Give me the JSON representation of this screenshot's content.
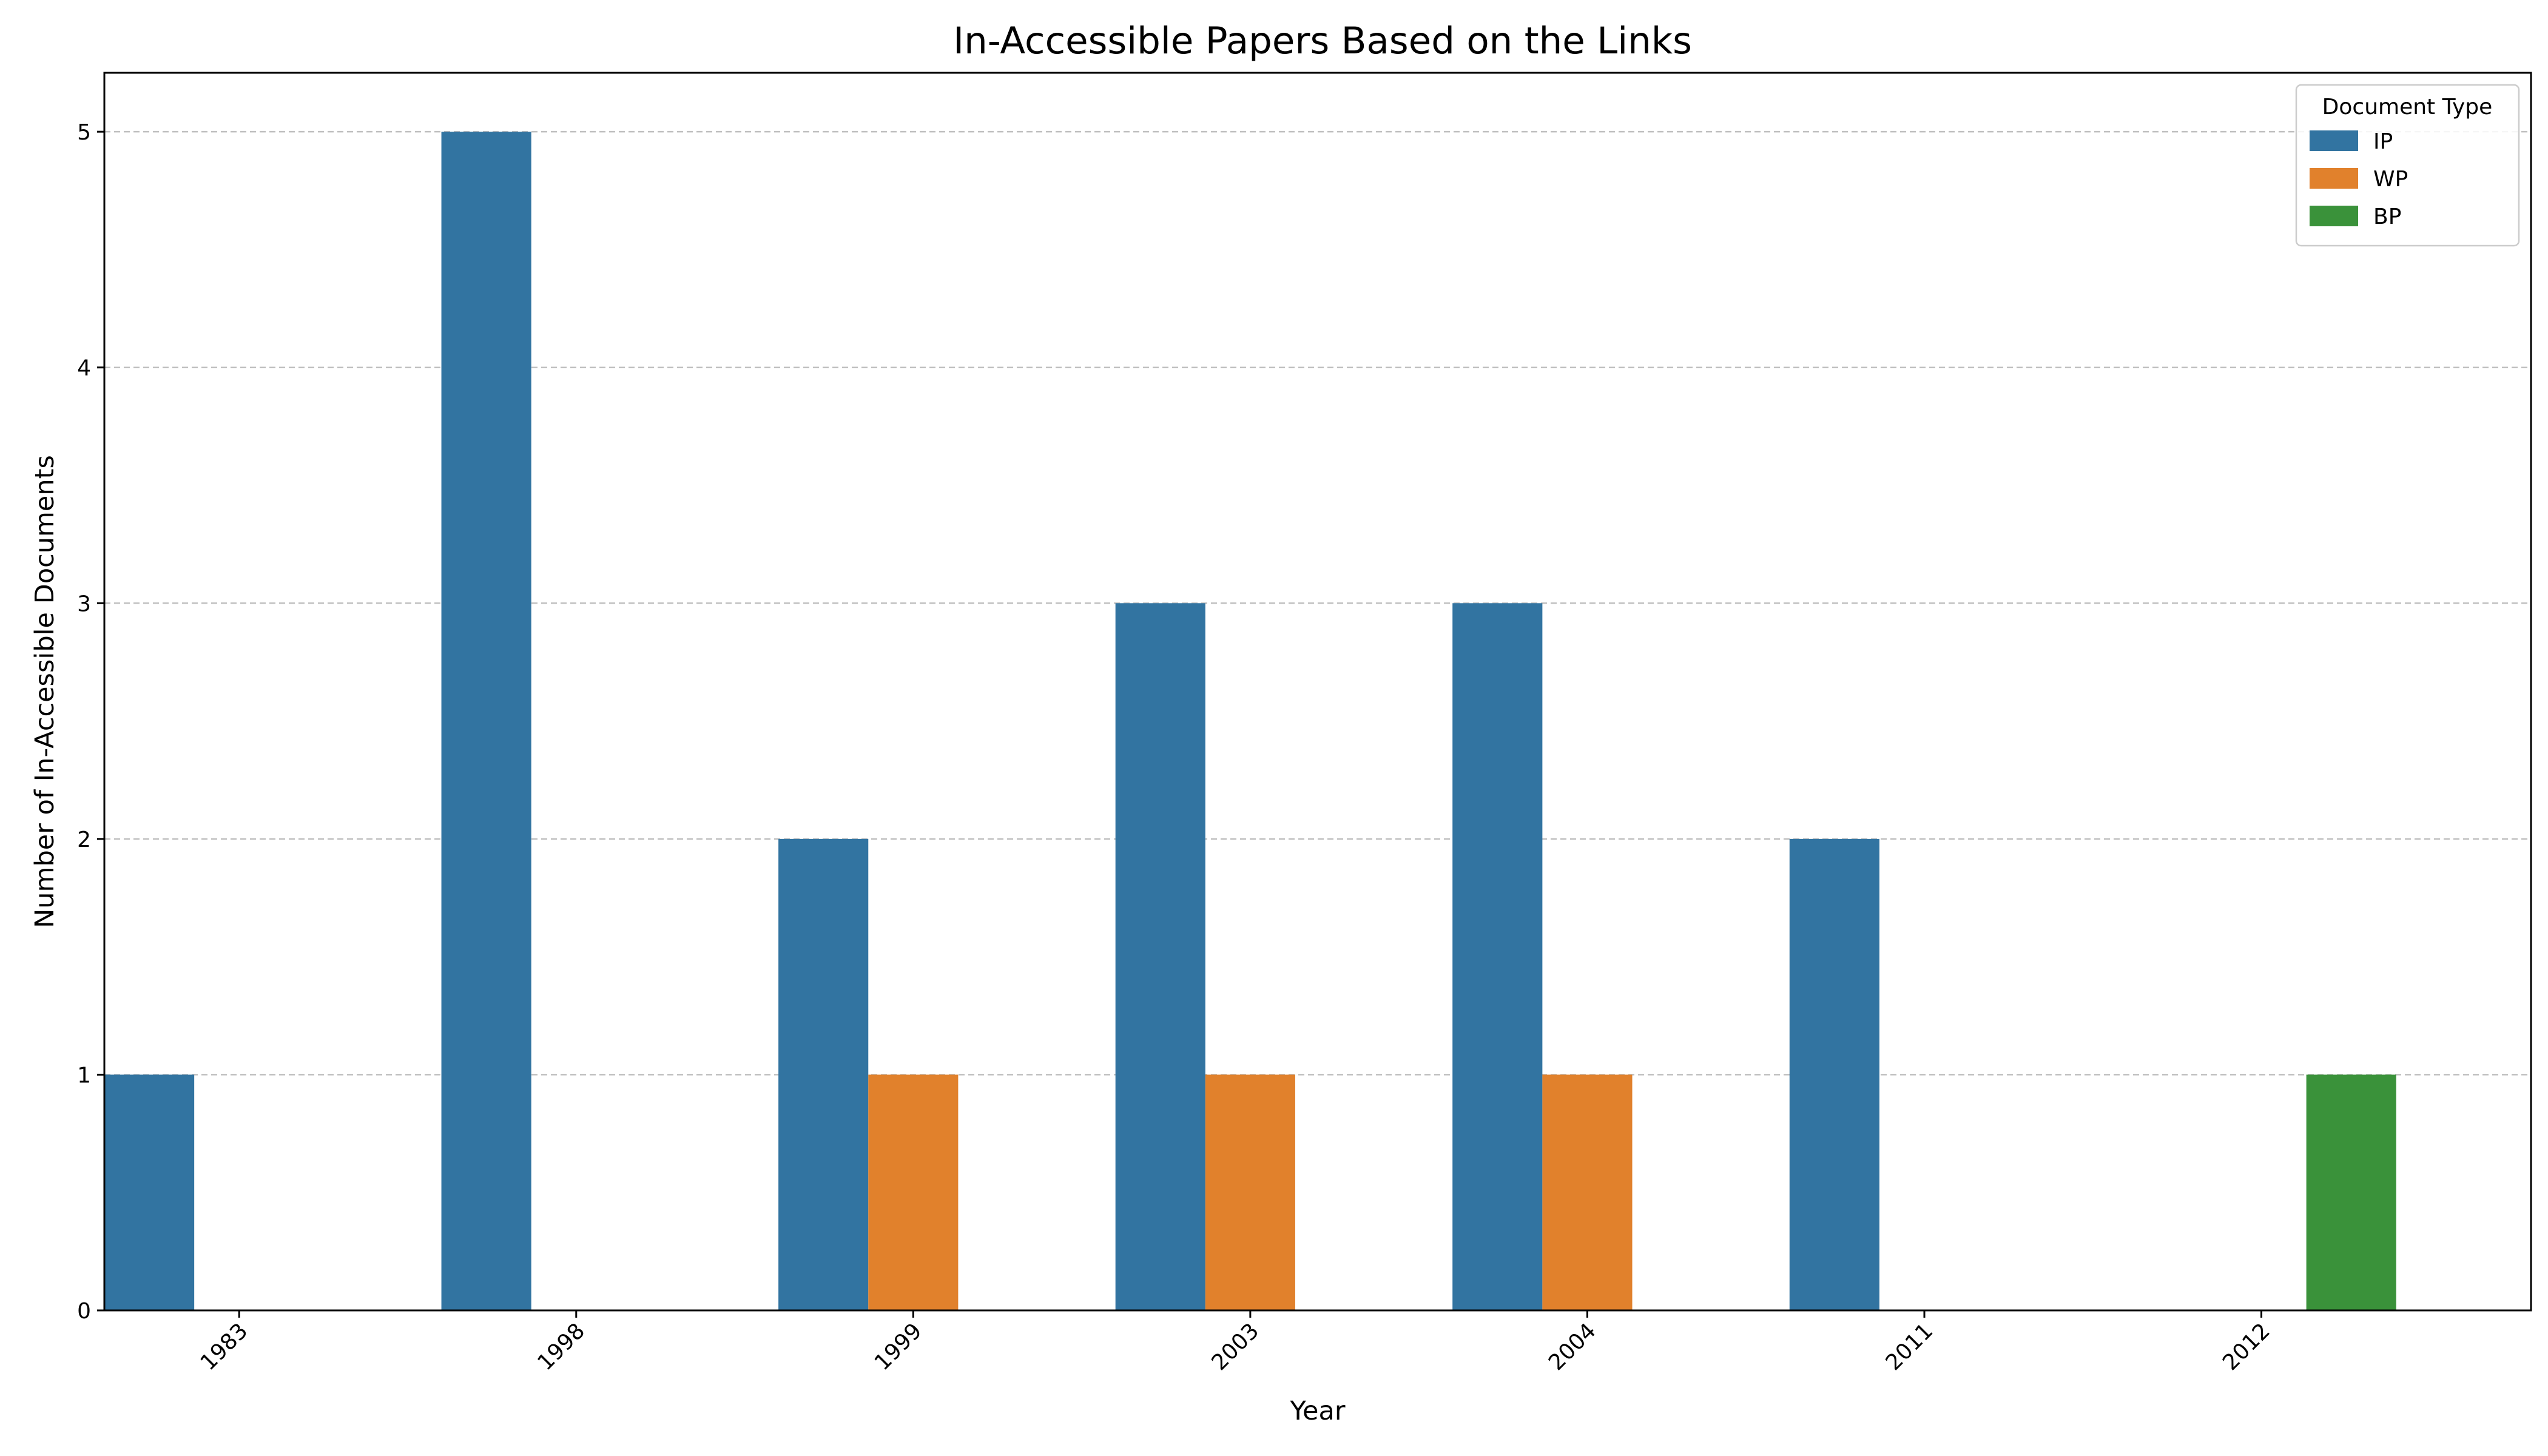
{
  "chart_data": {
    "type": "bar",
    "title": "In-Accessible Papers Based on the Links",
    "xlabel": "Year",
    "ylabel": "Number of In-Accessible Documents",
    "categories": [
      "1983",
      "1998",
      "1999",
      "2003",
      "2004",
      "2011",
      "2012"
    ],
    "series": [
      {
        "name": "IP",
        "color": "#3274a1",
        "values": [
          1,
          5,
          2,
          3,
          3,
          2,
          0
        ]
      },
      {
        "name": "WP",
        "color": "#e1812c",
        "values": [
          0,
          0,
          1,
          1,
          1,
          0,
          0
        ]
      },
      {
        "name": "BP",
        "color": "#3a923a",
        "values": [
          0,
          0,
          0,
          0,
          0,
          0,
          1
        ]
      }
    ],
    "ylim": [
      0,
      5.25
    ],
    "yticks": [
      0,
      1,
      2,
      3,
      4,
      5
    ],
    "grid": "y-dashed",
    "legend": {
      "title": "Document Type",
      "position": "top-right"
    },
    "xtick_rotation": 45
  }
}
